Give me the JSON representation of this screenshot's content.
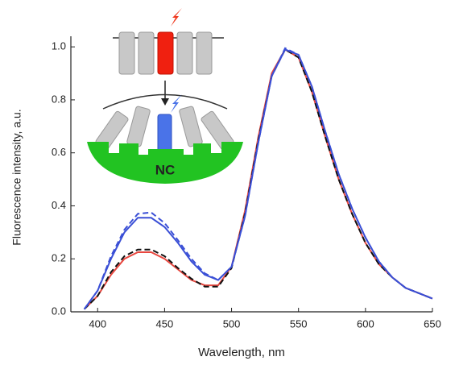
{
  "chart_data": {
    "type": "line",
    "xlabel": "Wavelength, nm",
    "ylabel": "Fluorescence intensity, a.u.",
    "inset_label": "NC",
    "x": [
      390,
      400,
      410,
      420,
      430,
      440,
      450,
      460,
      470,
      480,
      490,
      500,
      510,
      520,
      530,
      540,
      550,
      560,
      570,
      580,
      590,
      600,
      610,
      620,
      630,
      640,
      650
    ],
    "series": [
      {
        "color": "#e8473f",
        "dash": false,
        "values": [
          0.01,
          0.06,
          0.14,
          0.2,
          0.225,
          0.225,
          0.2,
          0.16,
          0.12,
          0.1,
          0.1,
          0.17,
          0.38,
          0.66,
          0.9,
          0.99,
          0.96,
          0.83,
          0.66,
          0.5,
          0.37,
          0.26,
          0.18,
          0.13,
          0.09,
          0.07,
          0.05
        ]
      },
      {
        "color": "#111111",
        "dash": true,
        "values": [
          0.01,
          0.06,
          0.15,
          0.21,
          0.235,
          0.235,
          0.21,
          0.165,
          0.125,
          0.095,
          0.095,
          0.165,
          0.37,
          0.65,
          0.89,
          0.99,
          0.96,
          0.83,
          0.66,
          0.5,
          0.37,
          0.26,
          0.18,
          0.13,
          0.09,
          0.07,
          0.05
        ]
      },
      {
        "color": "#3a4fd6",
        "dash": false,
        "values": [
          0.01,
          0.08,
          0.2,
          0.3,
          0.355,
          0.355,
          0.32,
          0.26,
          0.19,
          0.14,
          0.12,
          0.17,
          0.36,
          0.64,
          0.89,
          0.99,
          0.97,
          0.85,
          0.68,
          0.52,
          0.39,
          0.28,
          0.19,
          0.13,
          0.09,
          0.07,
          0.05
        ]
      },
      {
        "color": "#3a4fd6",
        "dash": true,
        "values": [
          0.01,
          0.08,
          0.21,
          0.31,
          0.37,
          0.375,
          0.335,
          0.27,
          0.2,
          0.145,
          0.12,
          0.17,
          0.36,
          0.64,
          0.89,
          0.995,
          0.97,
          0.85,
          0.68,
          0.52,
          0.39,
          0.28,
          0.19,
          0.13,
          0.09,
          0.07,
          0.05
        ]
      }
    ],
    "xlim": [
      380,
      650
    ],
    "ylim": [
      0,
      1.04
    ],
    "xticks": [
      400,
      450,
      500,
      550,
      600,
      650
    ],
    "yticks": [
      {
        "value": 0,
        "label": "0.0"
      },
      {
        "value": 0.2,
        "label": "0.2"
      },
      {
        "value": 0.4,
        "label": "0.4"
      },
      {
        "value": 0.6,
        "label": "0.6"
      },
      {
        "value": 0.8,
        "label": "0.8"
      },
      {
        "value": 1.0,
        "label": "1.0"
      }
    ]
  }
}
